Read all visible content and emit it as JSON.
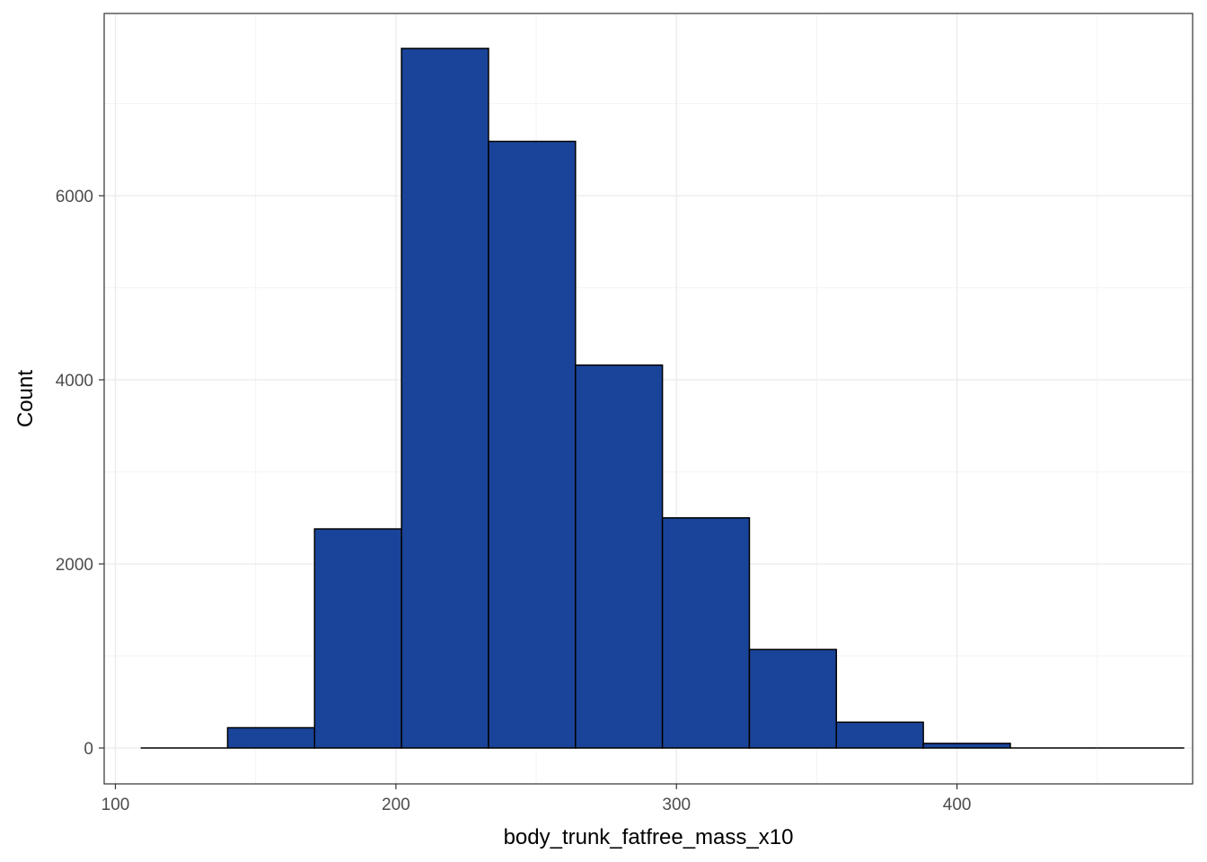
{
  "chart_data": {
    "type": "bar",
    "subtype": "histogram",
    "title": "",
    "xlabel": "body_trunk_fatfree_mass_x10",
    "ylabel": "Count",
    "xlim": [
      96,
      484
    ],
    "ylim": [
      -390,
      7980
    ],
    "x_ticks": [
      100,
      200,
      300,
      400
    ],
    "y_ticks": [
      0,
      2000,
      4000,
      6000
    ],
    "grid": true,
    "legend": "none",
    "bins": [
      {
        "x0": 109,
        "x1": 140,
        "count": 0
      },
      {
        "x0": 140,
        "x1": 171,
        "count": 220
      },
      {
        "x0": 171,
        "x1": 202,
        "count": 2380
      },
      {
        "x0": 202,
        "x1": 233,
        "count": 7600
      },
      {
        "x0": 233,
        "x1": 264,
        "count": 6590
      },
      {
        "x0": 264,
        "x1": 295,
        "count": 4160
      },
      {
        "x0": 295,
        "x1": 326,
        "count": 2500
      },
      {
        "x0": 326,
        "x1": 357,
        "count": 1070
      },
      {
        "x0": 357,
        "x1": 388,
        "count": 280
      },
      {
        "x0": 388,
        "x1": 419,
        "count": 50
      },
      {
        "x0": 419,
        "x1": 450,
        "count": 0
      },
      {
        "x0": 450,
        "x1": 481,
        "count": 0
      }
    ],
    "colors": {
      "fill": "#1a4499",
      "outline": "#000000",
      "grid_major": "#ebebeb",
      "grid_minor": "#f4f4f4",
      "panel_border": "#333333"
    }
  }
}
